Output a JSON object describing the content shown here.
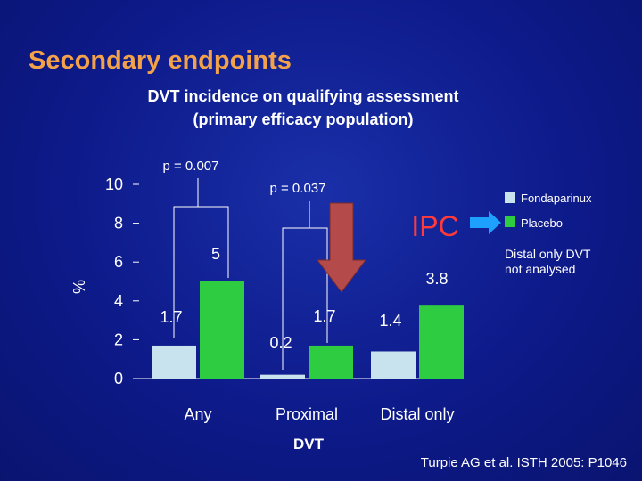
{
  "slide": {
    "title": "Secondary endpoints",
    "citation": "Turpie AG et al. ISTH 2005: P1046"
  },
  "chart_data": {
    "type": "bar",
    "title_lines": [
      "DVT incidence on qualifying assessment",
      "(primary efficacy population)"
    ],
    "xlabel": "DVT",
    "ylabel": "%",
    "ylim": [
      0,
      10
    ],
    "yticks": [
      0,
      2,
      4,
      6,
      8,
      10
    ],
    "categories": [
      "Any",
      "Proximal",
      "Distal only"
    ],
    "series": [
      {
        "name": "Fondaparinux",
        "color": "#c8e2ee",
        "values": [
          1.7,
          0.2,
          1.4
        ],
        "labels": [
          "1.7",
          "0.2",
          "1.4"
        ]
      },
      {
        "name": "Placebo",
        "color": "#2ecc40",
        "values": [
          5,
          1.7,
          3.8
        ],
        "labels": [
          "5",
          "1.7",
          "3.8"
        ]
      }
    ],
    "legend_placement": "right",
    "annotations": {
      "p_any": "p = 0.007",
      "p_proximal": "p = 0.037",
      "ipc": "IPC",
      "distal_note_lines": [
        "Distal only DVT",
        "not analysed"
      ]
    },
    "colors": {
      "arrow": "#b54a4a",
      "arrow_right": "#1ea0ff"
    }
  }
}
